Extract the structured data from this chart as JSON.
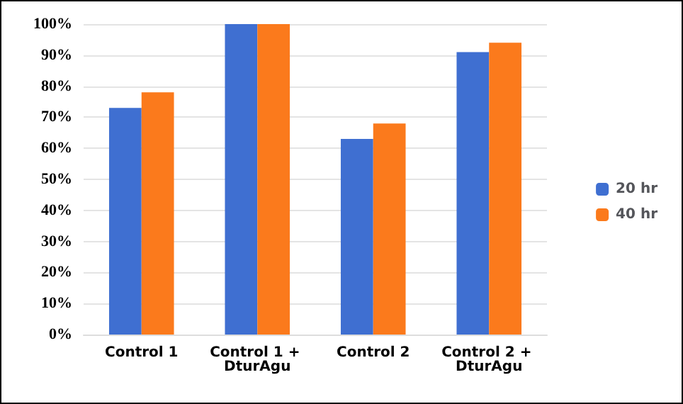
{
  "chart_data": {
    "type": "bar",
    "categories": [
      "Control 1",
      "Control 1 + DturAgu",
      "Control 2",
      "Control 2 + DturAgu"
    ],
    "series": [
      {
        "name": "20 hr",
        "color": "#3f6fd1",
        "values": [
          73,
          100,
          63,
          91
        ]
      },
      {
        "name": "40 hr",
        "color": "#fb7a1c",
        "values": [
          78,
          100,
          68,
          94
        ]
      }
    ],
    "ylim": [
      0,
      100
    ],
    "yticks": [
      {
        "value": 0,
        "label": "0%"
      },
      {
        "value": 10,
        "label": "10%"
      },
      {
        "value": 20,
        "label": "20%"
      },
      {
        "value": 30,
        "label": "30%"
      },
      {
        "value": 40,
        "label": "40%"
      },
      {
        "value": 50,
        "label": "50%"
      },
      {
        "value": 60,
        "label": "60%"
      },
      {
        "value": 70,
        "label": "70%"
      },
      {
        "value": 80,
        "label": "80%"
      },
      {
        "value": 90,
        "label": "90%"
      },
      {
        "value": 100,
        "label": "100%"
      }
    ],
    "grid": "y",
    "legend": "right"
  }
}
